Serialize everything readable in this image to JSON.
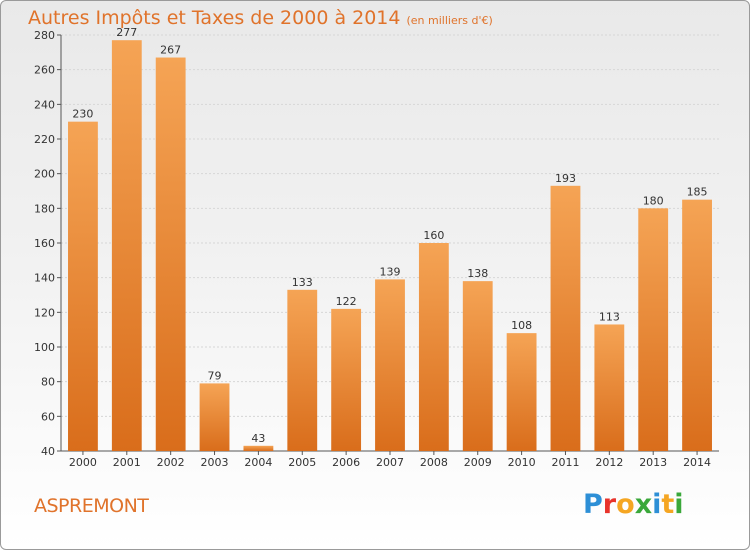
{
  "header": {
    "title": "Autres Impôts et Taxes de 2000 à 2014",
    "subtitle": "(en milliers d'€)"
  },
  "footer": {
    "commune": "ASPREMONT",
    "logo_letters": [
      {
        "ch": "P",
        "color": "#2d8fd6"
      },
      {
        "ch": "r",
        "color": "#e8332b"
      },
      {
        "ch": "o",
        "color": "#f5a623"
      },
      {
        "ch": "x",
        "color": "#3aa83a"
      },
      {
        "ch": "i",
        "color": "#2d8fd6"
      },
      {
        "ch": "t",
        "color": "#f5a623"
      },
      {
        "ch": "i",
        "color": "#3aa83a"
      }
    ]
  },
  "colors": {
    "bar_top": "#f5a455",
    "bar_bottom": "#d96d1b",
    "title": "#e0732b",
    "grid": "#d6d6d6"
  },
  "chart_data": {
    "type": "bar",
    "title": "Autres Impôts et Taxes de 2000 à 2014",
    "subtitle": "(en milliers d'€)",
    "categories": [
      "2000",
      "2001",
      "2002",
      "2003",
      "2004",
      "2005",
      "2006",
      "2007",
      "2008",
      "2009",
      "2010",
      "2011",
      "2012",
      "2013",
      "2014"
    ],
    "values": [
      230,
      277,
      267,
      79,
      43,
      133,
      122,
      139,
      160,
      138,
      108,
      193,
      113,
      180,
      185
    ],
    "ylim": [
      40,
      280
    ],
    "yticks": [
      40,
      60,
      80,
      100,
      120,
      140,
      160,
      180,
      200,
      220,
      240,
      260,
      280
    ],
    "grid": true,
    "xlabel": "",
    "ylabel": ""
  }
}
